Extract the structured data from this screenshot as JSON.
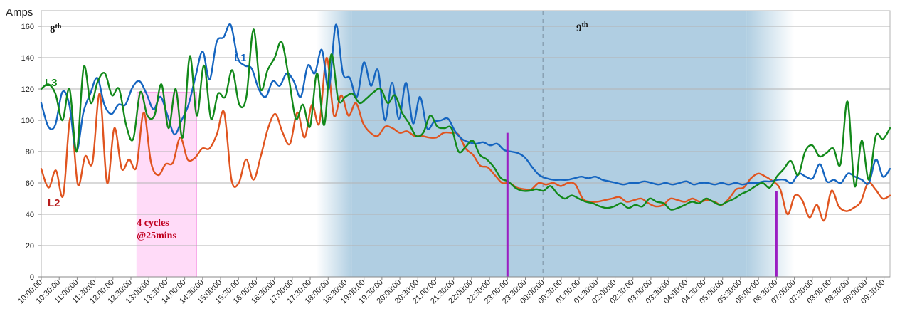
{
  "chart_data": {
    "type": "line",
    "ylabel": "Amps",
    "ylim": [
      0,
      170
    ],
    "yticks": [
      0,
      20,
      40,
      60,
      80,
      100,
      120,
      140,
      160
    ],
    "grid": true,
    "xticks": [
      "10:00:00",
      "10:30:00",
      "11:00:00",
      "11:30:00",
      "12:00:00",
      "12:30:00",
      "13:00:00",
      "13:30:00",
      "14:00:00",
      "14:30:00",
      "15:00:00",
      "15:30:00",
      "16:00:00",
      "16:30:00",
      "17:00:00",
      "17:30:00",
      "18:00:00",
      "18:30:00",
      "19:00:00",
      "19:30:00",
      "20:00:00",
      "20:30:00",
      "21:00:00",
      "21:30:00",
      "22:00:00",
      "22:30:00",
      "23:00:00",
      "23:30:00",
      "00:00:00",
      "00:30:00",
      "01:00:00",
      "01:30:00",
      "02:00:00",
      "02:30:00",
      "03:00:00",
      "03:30:00",
      "04:00:00",
      "04:30:00",
      "05:00:00",
      "05:30:00",
      "06:00:00",
      "06:30:00",
      "07:00:00",
      "07:30:00",
      "08:00:00",
      "08:30:00",
      "09:00:00",
      "09:30:00"
    ],
    "x_range": [
      "10:00:00",
      "09:40:00"
    ],
    "series": [
      {
        "name": "L1",
        "color": "#1565c0",
        "label_color": "#1565c0",
        "values": [
          111,
          96,
          97,
          118,
          110,
          80,
          105,
          117,
          127,
          110,
          104,
          110,
          110,
          121,
          125,
          117,
          107,
          115,
          103,
          91,
          100,
          110,
          128,
          144,
          126,
          150,
          153,
          161,
          140,
          135,
          133,
          120,
          115,
          125,
          122,
          130,
          125,
          115,
          135,
          130,
          145,
          120,
          161,
          130,
          127,
          115,
          137,
          122,
          132,
          100,
          124,
          101,
          124,
          98,
          115,
          95,
          99,
          100,
          101,
          93,
          88,
          86,
          85,
          86,
          84,
          85,
          81,
          80,
          79,
          76,
          70,
          65,
          63,
          62,
          62,
          62,
          63,
          64,
          63,
          64,
          62,
          61,
          60,
          59,
          60,
          60,
          61,
          60,
          59,
          60,
          59,
          60,
          61,
          59,
          60,
          60,
          59,
          60,
          59,
          60,
          59,
          60,
          60,
          61,
          61,
          62,
          62,
          60,
          66,
          64,
          63,
          72,
          61,
          62,
          60,
          66,
          64,
          62,
          60,
          75,
          64,
          69
        ]
      },
      {
        "name": "L2",
        "color": "#e0541f",
        "label_color": "#b71c1c",
        "values": [
          69,
          57,
          68,
          52,
          102,
          59,
          77,
          73,
          117,
          60,
          95,
          69,
          75,
          70,
          105,
          73,
          65,
          72,
          73,
          89,
          75,
          76,
          82,
          82,
          91,
          105,
          62,
          60,
          75,
          62,
          77,
          95,
          104,
          92,
          85,
          105,
          89,
          110,
          98,
          140,
          103,
          116,
          103,
          111,
          98,
          92,
          90,
          96,
          95,
          92,
          93,
          90,
          90,
          89,
          89,
          92,
          92,
          91,
          82,
          78,
          71,
          70,
          65,
          60,
          60,
          57,
          56,
          56,
          60,
          59,
          60,
          58,
          60,
          59,
          50,
          48,
          48,
          49,
          50,
          51,
          48,
          49,
          50,
          47,
          45,
          46,
          50,
          49,
          48,
          50,
          48,
          49,
          48,
          46,
          50,
          56,
          57,
          63,
          66,
          64,
          61,
          56,
          40,
          52,
          49,
          38,
          46,
          36,
          55,
          45,
          42,
          44,
          48,
          60,
          56,
          50,
          52
        ]
      },
      {
        "name": "L3",
        "color": "#12891a",
        "label_color": "#12891a",
        "values": [
          120,
          123,
          117,
          100,
          120,
          80,
          134,
          111,
          125,
          130,
          116,
          120,
          97,
          88,
          118,
          103,
          103,
          123,
          95,
          120,
          89,
          141,
          103,
          135,
          101,
          117,
          115,
          132,
          110,
          115,
          158,
          120,
          132,
          140,
          150,
          127,
          101,
          110,
          96,
          130,
          97,
          142,
          113,
          115,
          117,
          111,
          114,
          118,
          120,
          111,
          116,
          105,
          98,
          90,
          92,
          103,
          96,
          95,
          95,
          80,
          83,
          87,
          78,
          75,
          70,
          63,
          61,
          57,
          55,
          55,
          56,
          55,
          58,
          53,
          50,
          52,
          50,
          48,
          47,
          45,
          44,
          45,
          47,
          44,
          46,
          45,
          50,
          48,
          47,
          43,
          44,
          46,
          48,
          47,
          50,
          48,
          46,
          48,
          50,
          53,
          55,
          58,
          60,
          57,
          64,
          69,
          74,
          65,
          80,
          84,
          77,
          79,
          82,
          72,
          112,
          58,
          87,
          62,
          90,
          88,
          95
        ]
      }
    ],
    "shaded_regions": [
      {
        "from": "17:40:00",
        "to": "18:40:00",
        "style": "fade-in"
      },
      {
        "from": "18:40:00",
        "to": "05:40:00",
        "style": "solid"
      },
      {
        "from": "05:40:00",
        "to": "07:00:00",
        "style": "fade-out"
      },
      {
        "from": "12:40:00",
        "to": "14:20:00",
        "style": "highlight"
      }
    ],
    "markers": [
      {
        "x": "23:00:00",
        "value": 92
      },
      {
        "x": "06:30:00",
        "value": 55
      }
    ],
    "divider_x": "00:00:00",
    "annotations": {
      "day1": "8",
      "day1_sup": "th",
      "day2": "9",
      "day2_sup": "th",
      "cycles_line1": "4 cycles",
      "cycles_line2": "@25mins"
    },
    "colors": {
      "night_shade": "#a9cadf",
      "highlight": "#ffccf5",
      "marker": "#9a1ec2",
      "divider": "#8ba3b5",
      "annotation": "#c0001f"
    }
  }
}
